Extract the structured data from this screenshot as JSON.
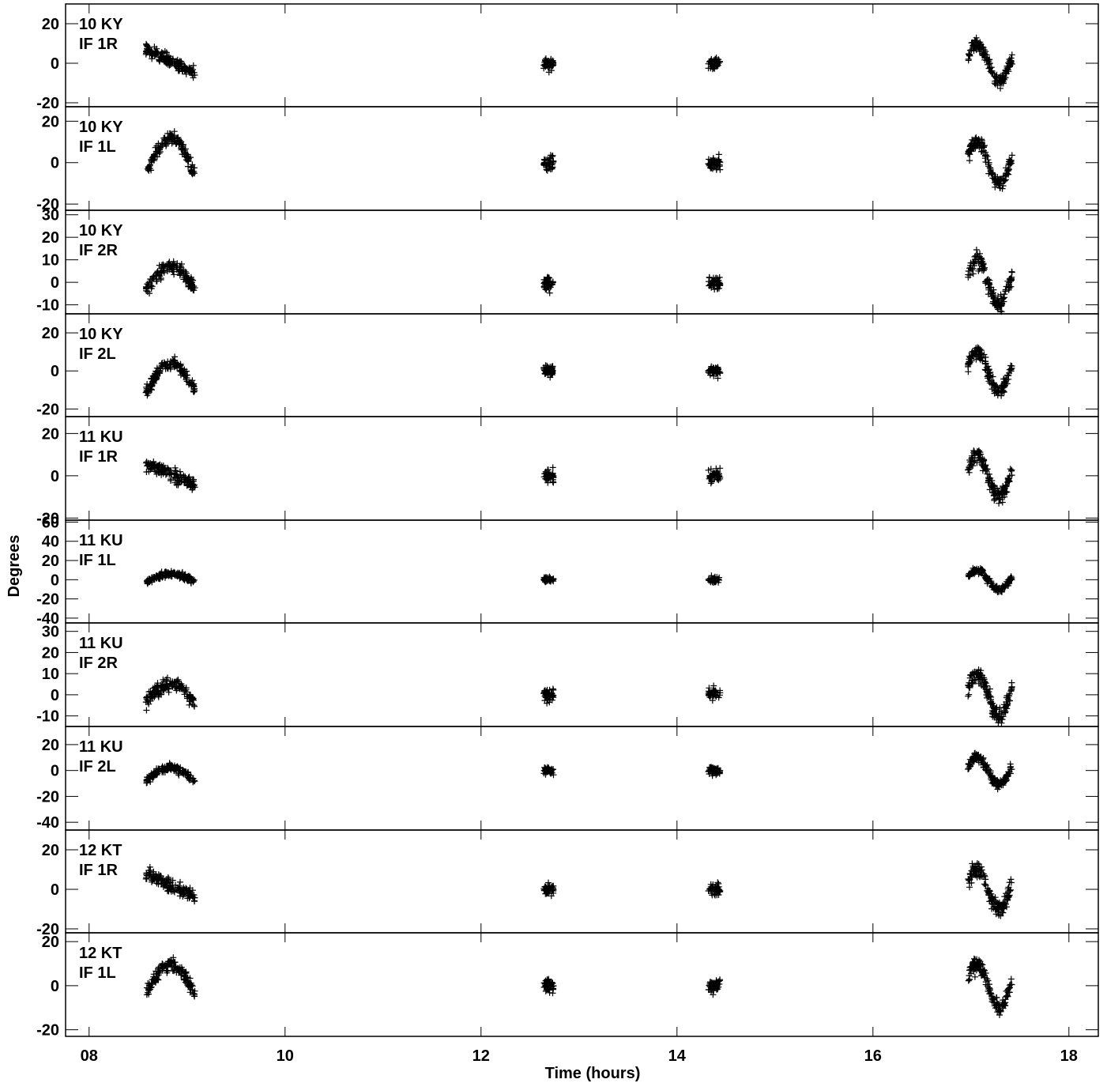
{
  "chart_data": {
    "type": "scatter",
    "xlabel": "Time (hours)",
    "ylabel": "Degrees",
    "xlim": [
      7.76,
      18.3
    ],
    "x_ticks": [
      "08",
      "10",
      "12",
      "14",
      "16",
      "18"
    ],
    "x_tick_values": [
      8,
      10,
      12,
      14,
      16,
      18
    ],
    "marker": "+",
    "color": "#000000",
    "panels": [
      {
        "label": [
          "10 KY",
          "IF 1R"
        ],
        "ylim": [
          -22,
          30
        ],
        "yticks": [
          20,
          0,
          -20
        ]
      },
      {
        "label": [
          "10 KY",
          "IF 1L"
        ],
        "ylim": [
          -23,
          27
        ],
        "yticks": [
          20,
          0,
          -20
        ]
      },
      {
        "label": [
          "10 KY",
          "IF 2R"
        ],
        "ylim": [
          -14,
          32
        ],
        "yticks": [
          30,
          20,
          10,
          0,
          -10
        ]
      },
      {
        "label": [
          "10 KY",
          "IF 2L"
        ],
        "ylim": [
          -24,
          30
        ],
        "yticks": [
          20,
          0,
          -20
        ]
      },
      {
        "label": [
          "11 KU",
          "IF 1R"
        ],
        "ylim": [
          -21,
          28
        ],
        "yticks": [
          20,
          0,
          -20
        ]
      },
      {
        "label": [
          "11 KU",
          "IF 1L"
        ],
        "ylim": [
          -45,
          62
        ],
        "yticks": [
          60,
          40,
          20,
          0,
          -20,
          -40
        ]
      },
      {
        "label": [
          "11 KU",
          "IF 2R"
        ],
        "ylim": [
          -15,
          34
        ],
        "yticks": [
          30,
          20,
          10,
          0,
          -10
        ]
      },
      {
        "label": [
          "11 KU",
          "IF 2L"
        ],
        "ylim": [
          -46,
          34
        ],
        "yticks": [
          20,
          0,
          -20,
          -40
        ]
      },
      {
        "label": [
          "12 KT",
          "IF 1R"
        ],
        "ylim": [
          -22,
          30
        ],
        "yticks": [
          20,
          0,
          -20
        ]
      },
      {
        "label": [
          "12 KT",
          "IF 1L"
        ],
        "ylim": [
          -23,
          24
        ],
        "yticks": [
          20,
          0,
          -20
        ]
      }
    ],
    "scans": [
      {
        "start": 8.58,
        "end": 9.08
      },
      {
        "start": 12.64,
        "end": 12.74
      },
      {
        "start": 14.32,
        "end": 14.44
      },
      {
        "start": 16.97,
        "end": 17.42
      }
    ]
  }
}
